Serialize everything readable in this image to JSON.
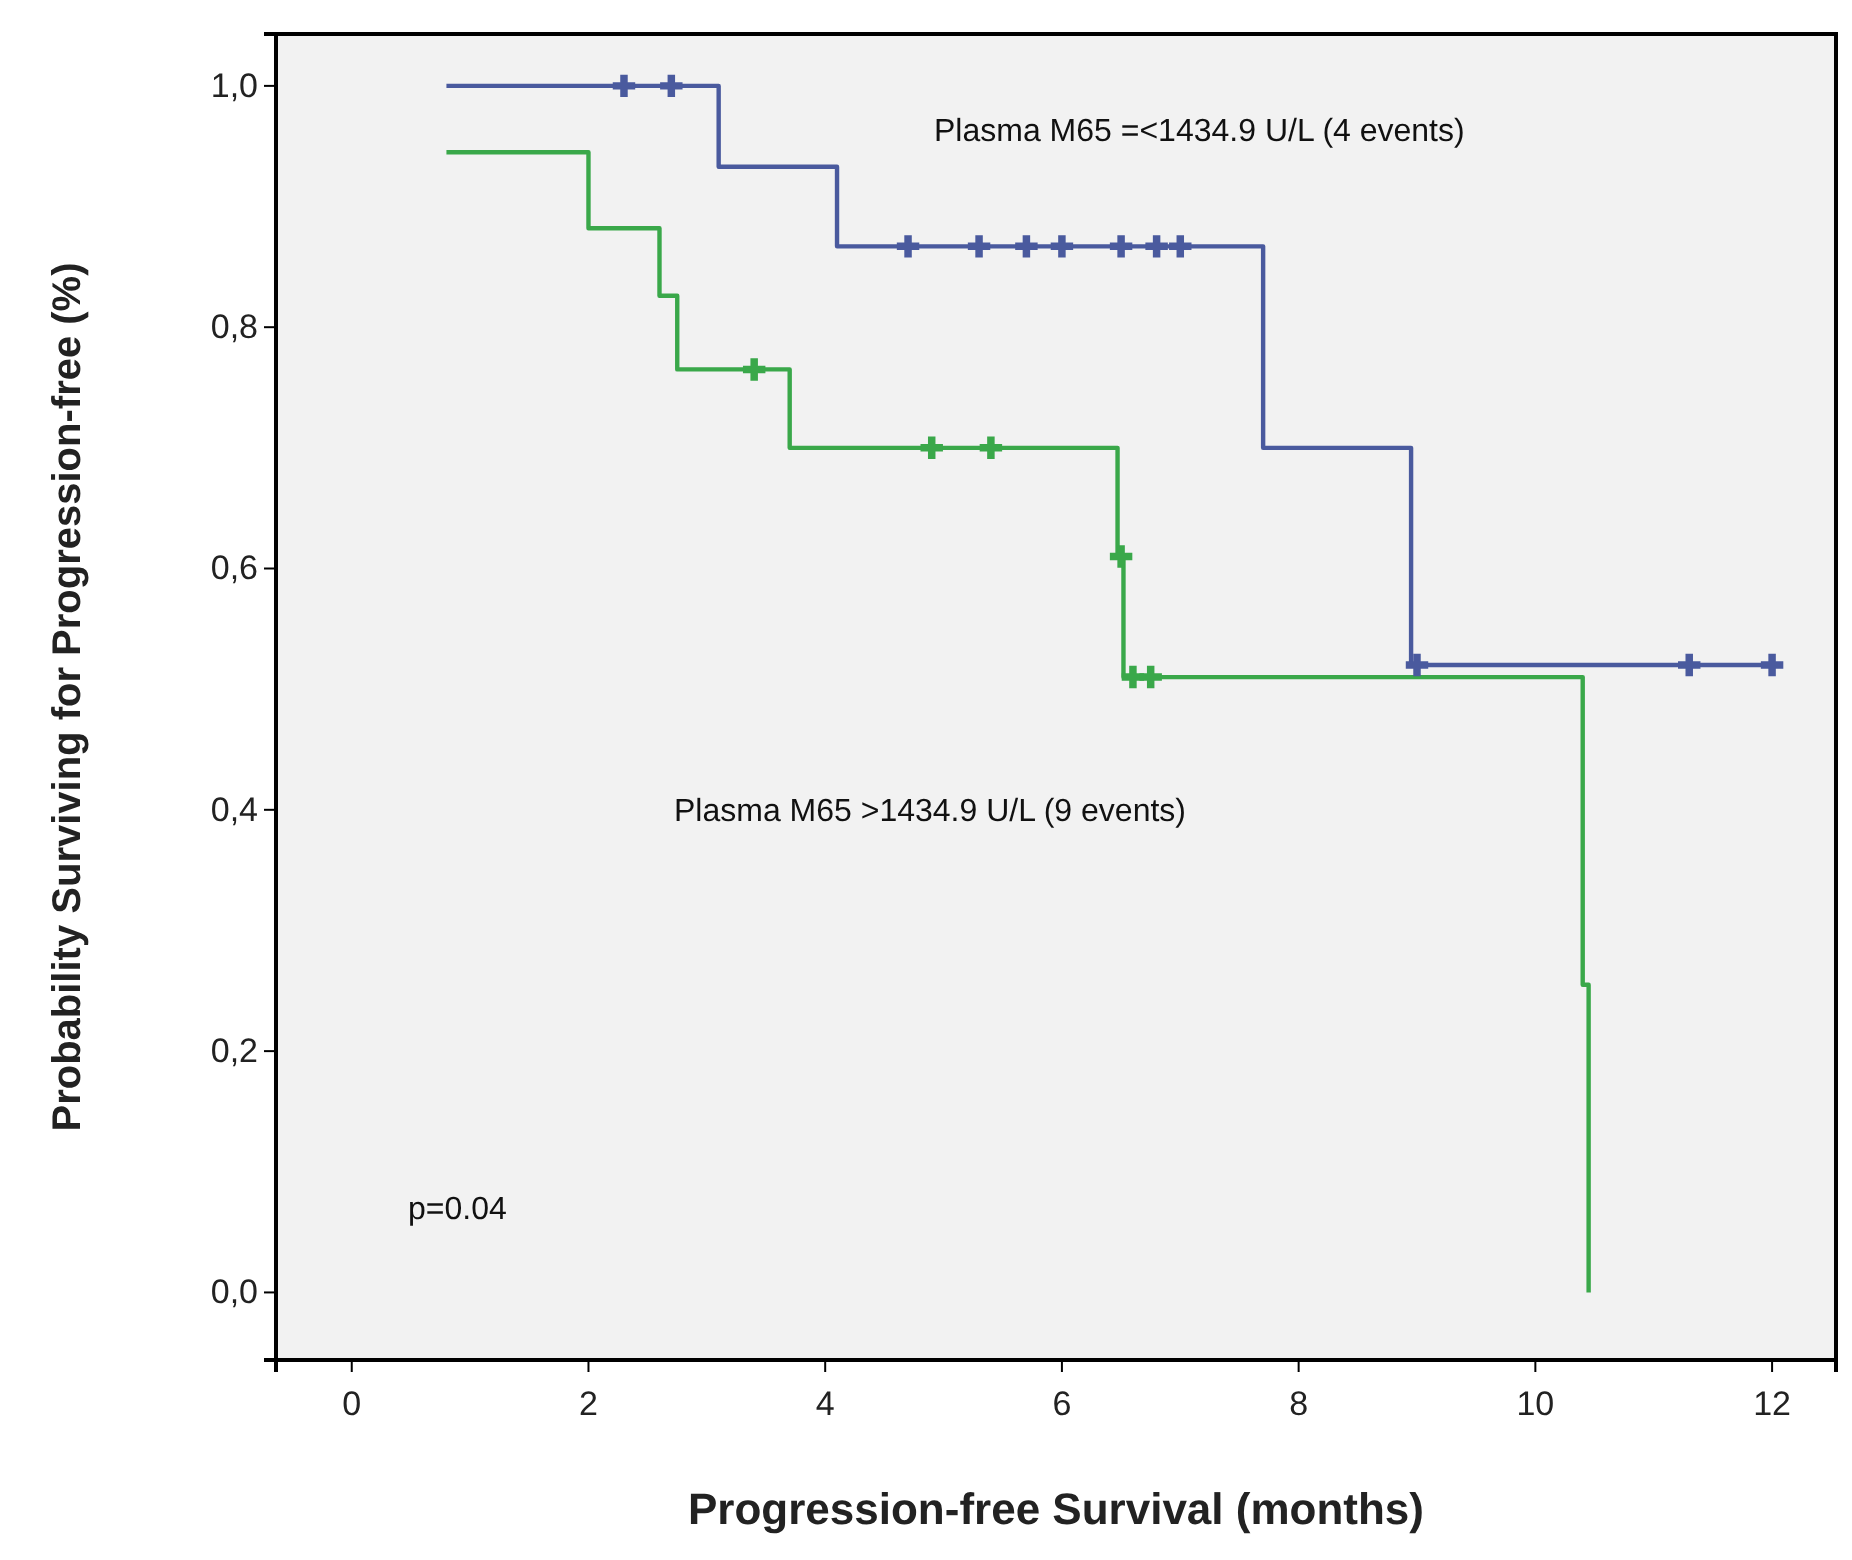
{
  "chart_data": {
    "type": "step",
    "xlabel": "Progression-free Survival (months)",
    "ylabel": "Probability Surviving for Progression-free (%)",
    "xlim": [
      -0.64,
      12.54
    ],
    "ylim": [
      -0.056,
      1.043
    ],
    "xticks": [
      0,
      2,
      4,
      6,
      8,
      10,
      12
    ],
    "yticks": [
      {
        "value": 0,
        "label": "0,0"
      },
      {
        "value": 0.2,
        "label": "0,2"
      },
      {
        "value": 0.4,
        "label": "0,4"
      },
      {
        "value": 0.6,
        "label": "0,6"
      },
      {
        "value": 0.8,
        "label": "0,8"
      },
      {
        "value": 1,
        "label": "1,0"
      }
    ],
    "grid": false,
    "series": [
      {
        "color": "#4a5a9e",
        "marker": "none",
        "x": [
          0.8,
          3.1,
          4.1,
          7.7,
          8.95,
          12.0
        ],
        "values": [
          1.0,
          0.933,
          0.867,
          0.7,
          0.52,
          0.52
        ]
      },
      {
        "color": "#3aa84a",
        "marker": "none",
        "x": [
          0.8,
          2.0,
          2.6,
          2.75,
          3.7,
          6.47,
          6.52,
          10.4,
          10.45
        ],
        "values": [
          0.945,
          0.882,
          0.826,
          0.765,
          0.7,
          0.61,
          0.51,
          0.255,
          0.0
        ]
      },
      {
        "type": "scatter",
        "color": "#4a5a9e",
        "marker": "cross",
        "x": [
          2.3,
          2.7,
          4.7,
          5.3,
          5.7,
          6.0,
          6.5,
          6.8,
          7.0,
          9.0,
          11.3,
          12.0
        ],
        "values": [
          1.0,
          1.0,
          0.867,
          0.867,
          0.867,
          0.867,
          0.867,
          0.867,
          0.867,
          0.52,
          0.52,
          0.52
        ]
      },
      {
        "type": "scatter",
        "color": "#3aa84a",
        "marker": "cross",
        "x": [
          3.4,
          4.9,
          5.4,
          6.5,
          6.6,
          6.75
        ],
        "values": [
          0.765,
          0.7,
          0.7,
          0.61,
          0.51,
          0.51
        ]
      }
    ],
    "annotations": [
      "Plasma M65 =<1434.9 U/L (4 events)",
      "Plasma M65 >1434.9 U/L (9 events)",
      "p=0.04"
    ]
  }
}
